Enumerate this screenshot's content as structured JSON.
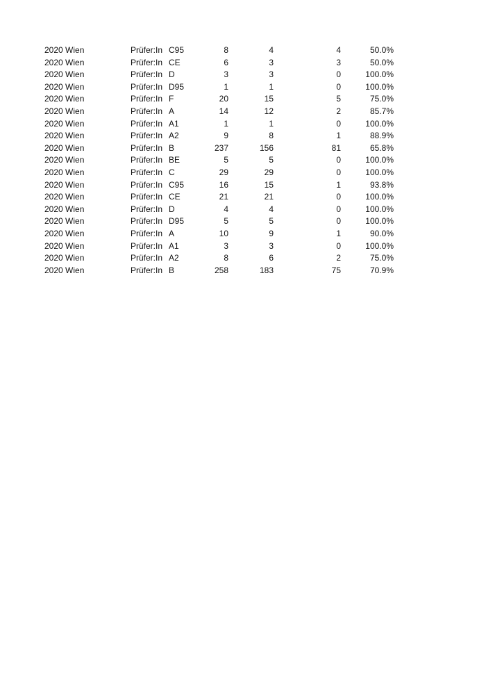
{
  "rows": [
    [
      "2020 Wien",
      "Prüfer:In",
      "C95",
      "8",
      "4",
      "4",
      "50.0%"
    ],
    [
      "2020 Wien",
      "Prüfer:In",
      "CE",
      "6",
      "3",
      "3",
      "50.0%"
    ],
    [
      "2020 Wien",
      "Prüfer:In",
      "D",
      "3",
      "3",
      "0",
      "100.0%"
    ],
    [
      "2020 Wien",
      "Prüfer:In",
      "D95",
      "1",
      "1",
      "0",
      "100.0%"
    ],
    [
      "2020 Wien",
      "Prüfer:In",
      "F",
      "20",
      "15",
      "5",
      "75.0%"
    ],
    [
      "2020 Wien",
      "Prüfer:In",
      "A",
      "14",
      "12",
      "2",
      "85.7%"
    ],
    [
      "2020 Wien",
      "Prüfer:In",
      "A1",
      "1",
      "1",
      "0",
      "100.0%"
    ],
    [
      "2020 Wien",
      "Prüfer:In",
      "A2",
      "9",
      "8",
      "1",
      "88.9%"
    ],
    [
      "2020 Wien",
      "Prüfer:In",
      "B",
      "237",
      "156",
      "81",
      "65.8%"
    ],
    [
      "2020 Wien",
      "Prüfer:In",
      "BE",
      "5",
      "5",
      "0",
      "100.0%"
    ],
    [
      "2020 Wien",
      "Prüfer:In",
      "C",
      "29",
      "29",
      "0",
      "100.0%"
    ],
    [
      "2020 Wien",
      "Prüfer:In",
      "C95",
      "16",
      "15",
      "1",
      "93.8%"
    ],
    [
      "2020 Wien",
      "Prüfer:In",
      "CE",
      "21",
      "21",
      "0",
      "100.0%"
    ],
    [
      "2020 Wien",
      "Prüfer:In",
      "D",
      "4",
      "4",
      "0",
      "100.0%"
    ],
    [
      "2020 Wien",
      "Prüfer:In",
      "D95",
      "5",
      "5",
      "0",
      "100.0%"
    ],
    [
      "2020 Wien",
      "Prüfer:In",
      "A",
      "10",
      "9",
      "1",
      "90.0%"
    ],
    [
      "2020 Wien",
      "Prüfer:In",
      "A1",
      "3",
      "3",
      "0",
      "100.0%"
    ],
    [
      "2020 Wien",
      "Prüfer:In",
      "A2",
      "8",
      "6",
      "2",
      "75.0%"
    ],
    [
      "2020 Wien",
      "Prüfer:In",
      "B",
      "258",
      "183",
      "75",
      "70.9%"
    ]
  ]
}
